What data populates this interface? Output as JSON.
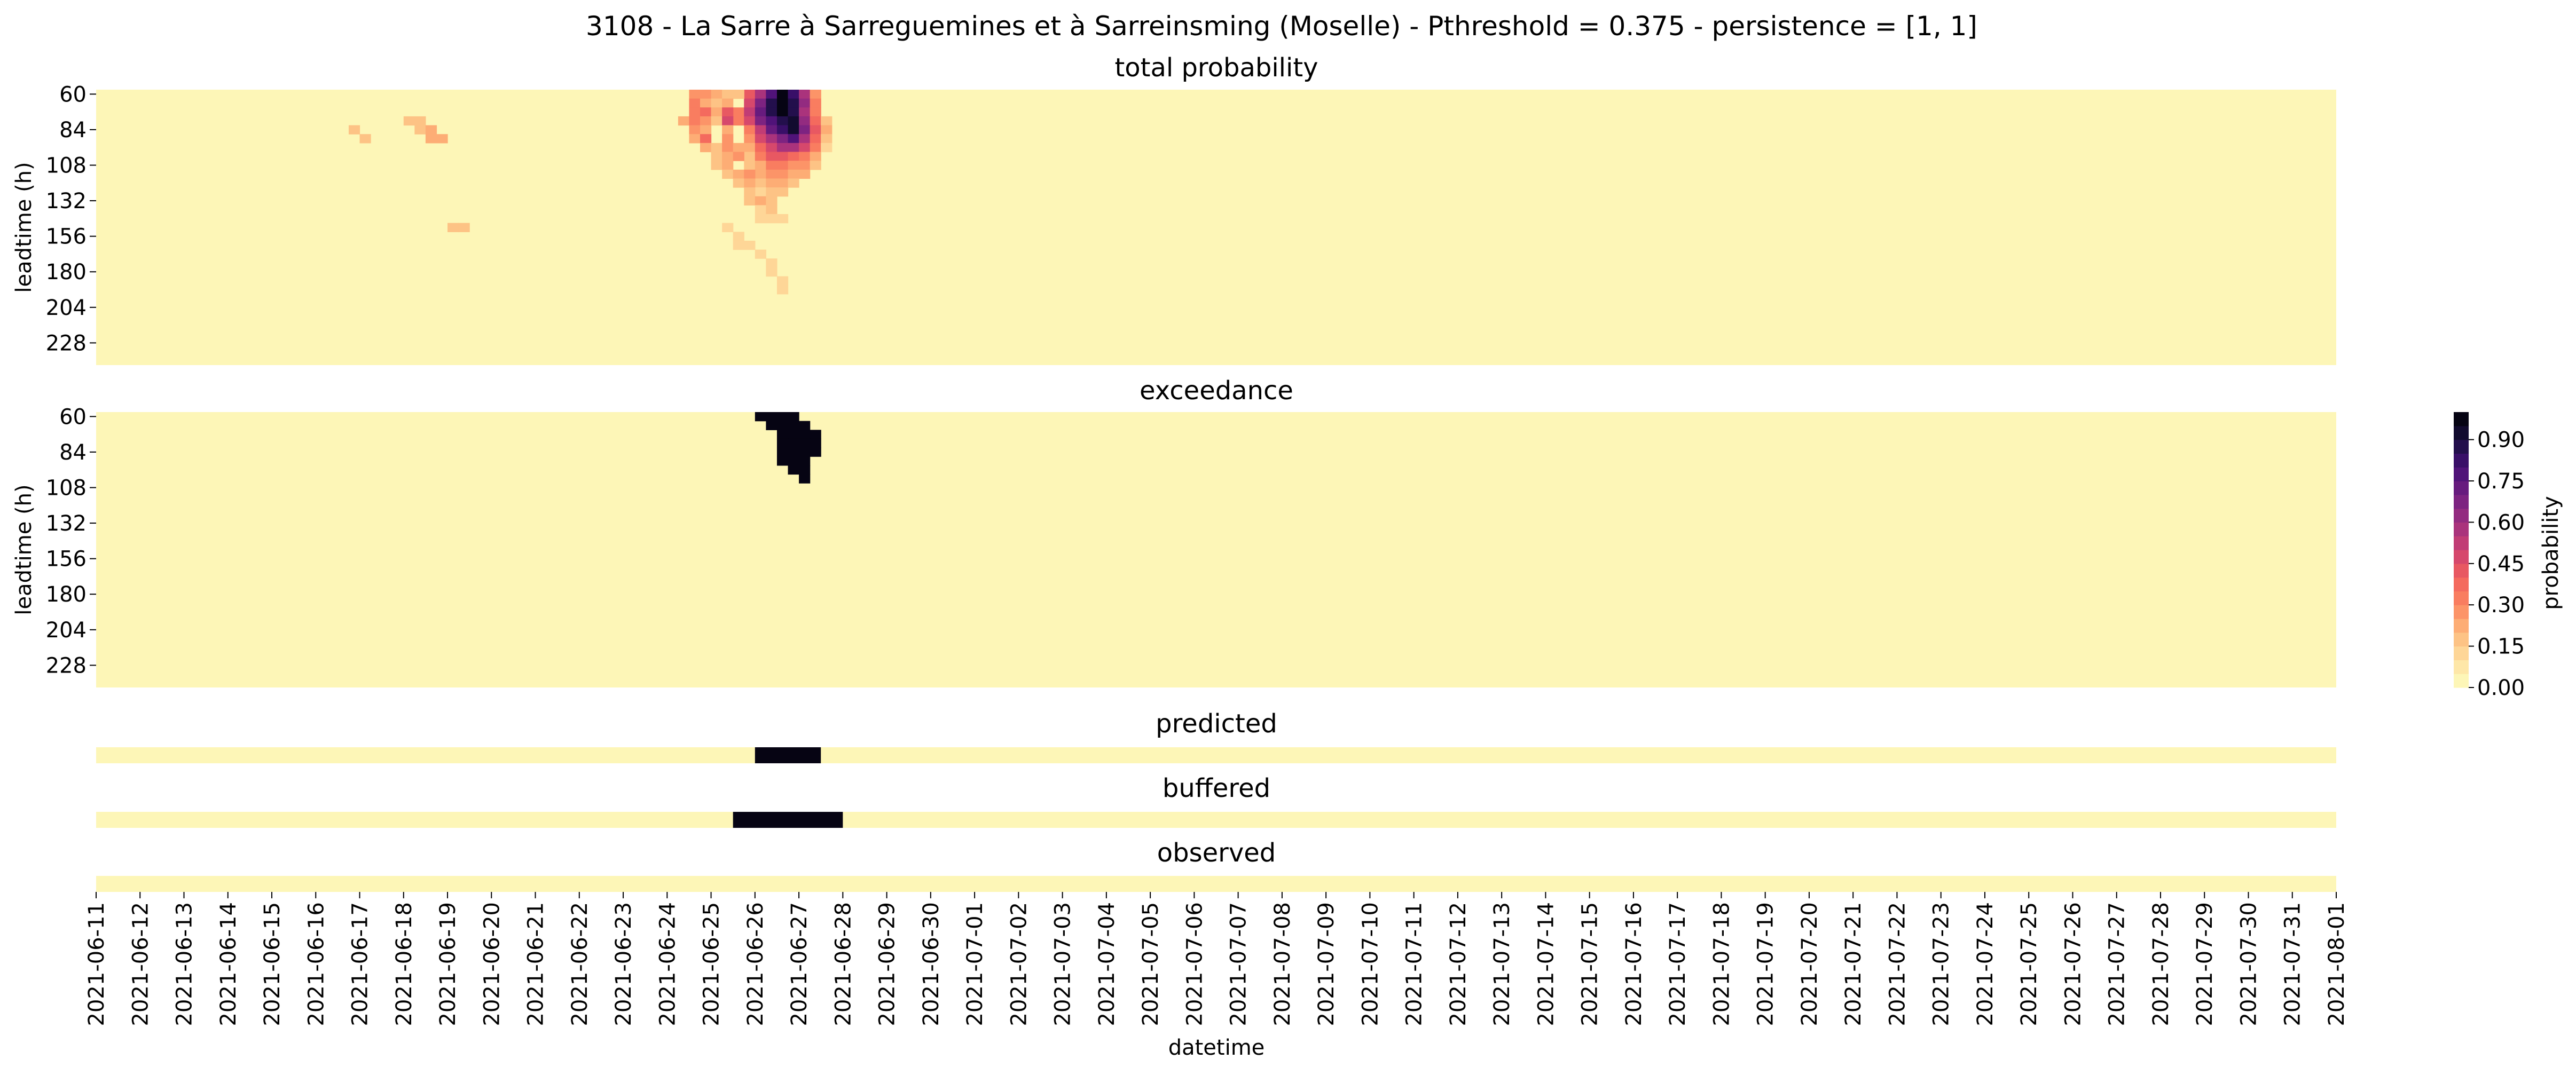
{
  "chart_data": {
    "type": "heatmap",
    "title": "3108 - La Sarre à Sarreguemines et à Sarreinsming (Moselle) - Pthreshold = 0.375 - persistence = [1, 1]",
    "xlabel": "datetime",
    "dates": [
      "2021-06-11",
      "2021-06-12",
      "2021-06-13",
      "2021-06-14",
      "2021-06-15",
      "2021-06-16",
      "2021-06-17",
      "2021-06-18",
      "2021-06-19",
      "2021-06-20",
      "2021-06-21",
      "2021-06-22",
      "2021-06-23",
      "2021-06-24",
      "2021-06-25",
      "2021-06-26",
      "2021-06-27",
      "2021-06-28",
      "2021-06-29",
      "2021-06-30",
      "2021-07-01",
      "2021-07-02",
      "2021-07-03",
      "2021-07-04",
      "2021-07-05",
      "2021-07-06",
      "2021-07-07",
      "2021-07-08",
      "2021-07-09",
      "2021-07-10",
      "2021-07-11",
      "2021-07-12",
      "2021-07-13",
      "2021-07-14",
      "2021-07-15",
      "2021-07-16",
      "2021-07-17",
      "2021-07-18",
      "2021-07-19",
      "2021-07-20",
      "2021-07-21",
      "2021-07-22",
      "2021-07-23",
      "2021-07-24",
      "2021-07-25",
      "2021-07-26",
      "2021-07-27",
      "2021-07-28",
      "2021-07-29",
      "2021-07-30",
      "2021-07-31",
      "2021-08-01"
    ],
    "steps_per_day": 4,
    "leadtimes": [
      60,
      66,
      72,
      78,
      84,
      90,
      96,
      102,
      108,
      114,
      120,
      126,
      132,
      138,
      144,
      150,
      156,
      162,
      168,
      174,
      180,
      186,
      192,
      198,
      204,
      210,
      216,
      222,
      228,
      234,
      240
    ],
    "ytick_labels": [
      "60",
      "84",
      "108",
      "132",
      "156",
      "180",
      "204",
      "228"
    ],
    "colorbar": {
      "label": "probability",
      "ticks": [
        "0.00",
        "0.15",
        "0.30",
        "0.45",
        "0.60",
        "0.75",
        "0.90"
      ],
      "tick_values": [
        0,
        0.15,
        0.3,
        0.45,
        0.6,
        0.75,
        0.9
      ],
      "vmin": 0,
      "vmax": 1,
      "levels": 20,
      "colormap": "magma_r"
    },
    "panels": {
      "total": {
        "title": "total probability",
        "ylabel": "leadtime (h)",
        "default": 0,
        "cells": [
          [
            59,
            0,
            0.4
          ],
          [
            60,
            0,
            0.55
          ],
          [
            61,
            0,
            0.75
          ],
          [
            62,
            0,
            0.95
          ],
          [
            63,
            0,
            0.8
          ],
          [
            64,
            0,
            0.55
          ],
          [
            65,
            0,
            0.25
          ],
          [
            59,
            1,
            0.45
          ],
          [
            60,
            1,
            0.65
          ],
          [
            61,
            1,
            0.85
          ],
          [
            62,
            1,
            1.0
          ],
          [
            63,
            1,
            0.85
          ],
          [
            64,
            1,
            0.6
          ],
          [
            65,
            1,
            0.3
          ],
          [
            58,
            2,
            0.3
          ],
          [
            59,
            2,
            0.5
          ],
          [
            60,
            2,
            0.7
          ],
          [
            61,
            2,
            0.85
          ],
          [
            62,
            2,
            0.95
          ],
          [
            63,
            2,
            0.85
          ],
          [
            64,
            2,
            0.55
          ],
          [
            65,
            2,
            0.3
          ],
          [
            58,
            3,
            0.3
          ],
          [
            59,
            3,
            0.45
          ],
          [
            60,
            3,
            0.65
          ],
          [
            61,
            3,
            0.75
          ],
          [
            62,
            3,
            0.85
          ],
          [
            63,
            3,
            0.9
          ],
          [
            64,
            3,
            0.6
          ],
          [
            65,
            3,
            0.35
          ],
          [
            66,
            3,
            0.15
          ],
          [
            59,
            4,
            0.3
          ],
          [
            60,
            4,
            0.5
          ],
          [
            61,
            4,
            0.7
          ],
          [
            62,
            4,
            0.8
          ],
          [
            63,
            4,
            0.9
          ],
          [
            64,
            4,
            0.65
          ],
          [
            65,
            4,
            0.4
          ],
          [
            66,
            4,
            0.2
          ],
          [
            59,
            5,
            0.25
          ],
          [
            60,
            5,
            0.45
          ],
          [
            61,
            5,
            0.55
          ],
          [
            62,
            5,
            0.65
          ],
          [
            63,
            5,
            0.75
          ],
          [
            64,
            5,
            0.55
          ],
          [
            65,
            5,
            0.35
          ],
          [
            66,
            5,
            0.15
          ],
          [
            59,
            6,
            0.2
          ],
          [
            60,
            6,
            0.35
          ],
          [
            61,
            6,
            0.45
          ],
          [
            62,
            6,
            0.55
          ],
          [
            63,
            6,
            0.55
          ],
          [
            64,
            6,
            0.45
          ],
          [
            65,
            6,
            0.3
          ],
          [
            66,
            6,
            0.1
          ],
          [
            59,
            7,
            0.15
          ],
          [
            60,
            7,
            0.3
          ],
          [
            61,
            7,
            0.4
          ],
          [
            62,
            7,
            0.4
          ],
          [
            63,
            7,
            0.35
          ],
          [
            64,
            7,
            0.3
          ],
          [
            65,
            7,
            0.2
          ],
          [
            59,
            8,
            0.15
          ],
          [
            60,
            8,
            0.2
          ],
          [
            61,
            8,
            0.3
          ],
          [
            62,
            8,
            0.3
          ],
          [
            63,
            8,
            0.25
          ],
          [
            64,
            8,
            0.25
          ],
          [
            65,
            8,
            0.15
          ],
          [
            60,
            9,
            0.2
          ],
          [
            61,
            9,
            0.25
          ],
          [
            62,
            9,
            0.25
          ],
          [
            63,
            9,
            0.2
          ],
          [
            64,
            9,
            0.2
          ],
          [
            60,
            10,
            0.15
          ],
          [
            61,
            10,
            0.2
          ],
          [
            62,
            10,
            0.2
          ],
          [
            63,
            10,
            0.15
          ],
          [
            60,
            11,
            0.1
          ],
          [
            61,
            11,
            0.15
          ],
          [
            62,
            11,
            0.15
          ],
          [
            54,
            0,
            0.25
          ],
          [
            55,
            0,
            0.25
          ],
          [
            56,
            0,
            0.2
          ],
          [
            57,
            0,
            0.15
          ],
          [
            58,
            0,
            0.15
          ],
          [
            54,
            1,
            0.3
          ],
          [
            55,
            1,
            0.2
          ],
          [
            56,
            1,
            0.15
          ],
          [
            57,
            1,
            0.2
          ],
          [
            54,
            2,
            0.3
          ],
          [
            55,
            2,
            0.35
          ],
          [
            56,
            2,
            0.2
          ],
          [
            57,
            2,
            0.4
          ],
          [
            53,
            3,
            0.2
          ],
          [
            54,
            3,
            0.3
          ],
          [
            55,
            3,
            0.25
          ],
          [
            56,
            3,
            0.15
          ],
          [
            57,
            3,
            0.45
          ],
          [
            54,
            4,
            0.25
          ],
          [
            55,
            4,
            0.2
          ],
          [
            57,
            4,
            0.2
          ],
          [
            54,
            5,
            0.2
          ],
          [
            55,
            5,
            0.35
          ],
          [
            57,
            5,
            0.25
          ],
          [
            55,
            6,
            0.2
          ],
          [
            56,
            6,
            0.15
          ],
          [
            57,
            6,
            0.25
          ],
          [
            58,
            6,
            0.2
          ],
          [
            56,
            7,
            0.15
          ],
          [
            57,
            7,
            0.2
          ],
          [
            58,
            7,
            0.25
          ],
          [
            56,
            8,
            0.15
          ],
          [
            57,
            8,
            0.2
          ],
          [
            57,
            9,
            0.15
          ],
          [
            58,
            9,
            0.2
          ],
          [
            59,
            9,
            0.25
          ],
          [
            58,
            10,
            0.15
          ],
          [
            59,
            10,
            0.2
          ],
          [
            59,
            11,
            0.15
          ],
          [
            59,
            12,
            0.15
          ],
          [
            60,
            12,
            0.2
          ],
          [
            61,
            12,
            0.15
          ],
          [
            60,
            13,
            0.1
          ],
          [
            61,
            13,
            0.15
          ],
          [
            60,
            14,
            0.1
          ],
          [
            61,
            14,
            0.1
          ],
          [
            62,
            14,
            0.1
          ],
          [
            57,
            15,
            0.12
          ],
          [
            58,
            16,
            0.12
          ],
          [
            58,
            17,
            0.12
          ],
          [
            59,
            17,
            0.12
          ],
          [
            60,
            18,
            0.12
          ],
          [
            61,
            19,
            0.12
          ],
          [
            61,
            20,
            0.12
          ],
          [
            62,
            21,
            0.12
          ],
          [
            62,
            22,
            0.12
          ],
          [
            23,
            4,
            0.15
          ],
          [
            24,
            5,
            0.15
          ],
          [
            28,
            3,
            0.15
          ],
          [
            29,
            3,
            0.15
          ],
          [
            29,
            4,
            0.15
          ],
          [
            30,
            4,
            0.2
          ],
          [
            31,
            5,
            0.2
          ],
          [
            30,
            5,
            0.2
          ],
          [
            32,
            15,
            0.15
          ],
          [
            33,
            15,
            0.15
          ]
        ]
      },
      "exceedance": {
        "title": "exceedance",
        "ylabel": "leadtime (h)",
        "default": 0,
        "cells": [
          [
            60,
            0,
            1
          ],
          [
            61,
            0,
            1
          ],
          [
            62,
            0,
            1
          ],
          [
            63,
            0,
            1
          ],
          [
            61,
            1,
            1
          ],
          [
            62,
            1,
            1
          ],
          [
            63,
            1,
            1
          ],
          [
            64,
            1,
            1
          ],
          [
            62,
            2,
            1
          ],
          [
            63,
            2,
            1
          ],
          [
            64,
            2,
            1
          ],
          [
            65,
            2,
            1
          ],
          [
            62,
            3,
            1
          ],
          [
            63,
            3,
            1
          ],
          [
            64,
            3,
            1
          ],
          [
            65,
            3,
            1
          ],
          [
            62,
            4,
            1
          ],
          [
            63,
            4,
            1
          ],
          [
            64,
            4,
            1
          ],
          [
            65,
            4,
            1
          ],
          [
            62,
            5,
            1
          ],
          [
            63,
            5,
            1
          ],
          [
            64,
            5,
            1
          ],
          [
            63,
            6,
            1
          ],
          [
            64,
            6,
            1
          ],
          [
            64,
            7,
            1
          ]
        ]
      },
      "predicted": {
        "title": "predicted",
        "ranges": [
          [
            60,
            66
          ]
        ]
      },
      "buffered": {
        "title": "buffered",
        "ranges": [
          [
            58,
            68
          ]
        ]
      },
      "observed": {
        "title": "observed",
        "ranges": []
      }
    }
  }
}
